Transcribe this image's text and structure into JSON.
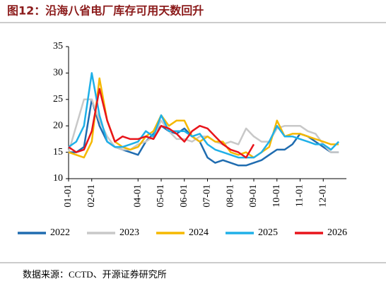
{
  "chart_data": {
    "type": "line",
    "title": "图12：沿海八省电厂库存可用天数回升",
    "source": "数据来源：CCTD、开源证券研究所",
    "categories": [
      "01-01",
      null,
      null,
      "02-01",
      null,
      null,
      null,
      null,
      null,
      "04-01",
      null,
      null,
      "05-01",
      null,
      null,
      "06-01",
      null,
      null,
      "07-01",
      null,
      null,
      "08-01",
      null,
      null,
      "09-01",
      null,
      null,
      "10-01",
      null,
      null,
      "11-01",
      null,
      null,
      "12-01",
      null,
      null
    ],
    "series": [
      {
        "name": "2022",
        "color": "#1f6cb0",
        "values": [
          15,
          15,
          16,
          25,
          20,
          17,
          16,
          15.5,
          15,
          14.5,
          17,
          18.5,
          20,
          19,
          18.5,
          19.5,
          18,
          17,
          14,
          13,
          13.5,
          13,
          12.5,
          12.5,
          13,
          13.5,
          14.5,
          15.5,
          15.5,
          16.5,
          18.5,
          18,
          17,
          16,
          15,
          15
        ]
      },
      {
        "name": "2023",
        "color": "#c8c8c8",
        "values": [
          15,
          20,
          25,
          25,
          21,
          18,
          16,
          15.5,
          15.5,
          16.5,
          17,
          18,
          21,
          19,
          17.5,
          17.5,
          17,
          18,
          18,
          17,
          16.5,
          17,
          16.5,
          19.5,
          18,
          17,
          17,
          19.5,
          20,
          20,
          20,
          19,
          18.5,
          16.5,
          15,
          15
        ]
      },
      {
        "name": "2024",
        "color": "#f5b800",
        "values": [
          15,
          14.5,
          14,
          17,
          29,
          21,
          17,
          16,
          15.5,
          16,
          18,
          19,
          22,
          20,
          21,
          21,
          18,
          17,
          18,
          17,
          17,
          15,
          14.5,
          15,
          14,
          15,
          16,
          21,
          18,
          18.5,
          18.5,
          18,
          17.5,
          17,
          16.5,
          16.5
        ]
      },
      {
        "name": "2025",
        "color": "#1fb0e8",
        "values": [
          16,
          17,
          20,
          30,
          22,
          17,
          16,
          16,
          16.5,
          17,
          19,
          18,
          22,
          19,
          19,
          19,
          18,
          18.5,
          16.5,
          15.5,
          15,
          14.5,
          14,
          14,
          14,
          15,
          17,
          20,
          18,
          18,
          17.5,
          17,
          16.5,
          16.5,
          15.5,
          17
        ]
      },
      {
        "name": "2026",
        "color": "#e8141b",
        "values": [
          16,
          15,
          15.5,
          19,
          27,
          21,
          17,
          18,
          17.5,
          17.5,
          18,
          17.5,
          20,
          19.5,
          18.5,
          17,
          19,
          20,
          19.5,
          18,
          16.5,
          15.5,
          15,
          14,
          16.5,
          null,
          null,
          null,
          null,
          null,
          null,
          null,
          null,
          null,
          null,
          null
        ]
      }
    ],
    "ylim": [
      10,
      35
    ],
    "yticks": [
      10,
      15,
      20,
      25,
      30,
      35
    ]
  }
}
